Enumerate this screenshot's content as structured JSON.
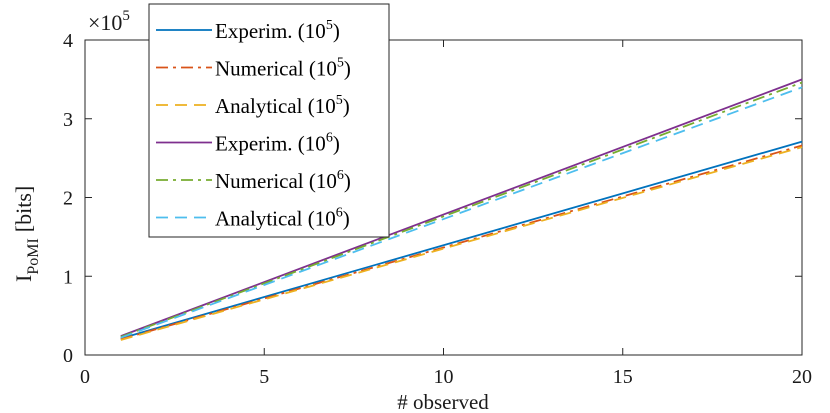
{
  "chart_data": {
    "type": "line",
    "title": "",
    "xlabel": "# observed",
    "ylabel": "I",
    "ylabel_subscript": "PoMI",
    "ylabel_unit": "[bits]",
    "y_multiplier_base": "×10",
    "y_multiplier_exp": "5",
    "xlim": [
      0,
      20
    ],
    "ylim": [
      0,
      4
    ],
    "xticks": [
      0,
      5,
      10,
      15,
      20
    ],
    "yticks": [
      0,
      1,
      2,
      3,
      4
    ],
    "x": [
      1,
      20
    ],
    "grid": false,
    "legend_position": "top-left",
    "series": [
      {
        "name": "Experim. (10^5)",
        "legend_text": "Experim. (10",
        "legend_exp": "5",
        "legend_tail": ")",
        "color": "#0072BD",
        "dash": "solid",
        "values": [
          0.21,
          2.71
        ]
      },
      {
        "name": "Numerical (10^5)",
        "legend_text": "Numerical (10",
        "legend_exp": "5",
        "legend_tail": ")",
        "color": "#D95319",
        "dash": "dashdot",
        "values": [
          0.2,
          2.66
        ]
      },
      {
        "name": "Analytical (10^5)",
        "legend_text": "Analytical (10",
        "legend_exp": "5",
        "legend_tail": ")",
        "color": "#EDB120",
        "dash": "dashed",
        "values": [
          0.19,
          2.64
        ]
      },
      {
        "name": "Experim. (10^6)",
        "legend_text": "Experim. (10",
        "legend_exp": "6",
        "legend_tail": ")",
        "color": "#7E2F8E",
        "dash": "solid",
        "values": [
          0.24,
          3.5
        ]
      },
      {
        "name": "Numerical (10^6)",
        "legend_text": "Numerical (10",
        "legend_exp": "6",
        "legend_tail": ")",
        "color": "#77AC30",
        "dash": "dashdot",
        "values": [
          0.23,
          3.46
        ]
      },
      {
        "name": "Analytical (10^6)",
        "legend_text": "Analytical (10",
        "legend_exp": "6",
        "legend_tail": ")",
        "color": "#4DBEEE",
        "dash": "dashed",
        "values": [
          0.22,
          3.4
        ]
      }
    ]
  }
}
